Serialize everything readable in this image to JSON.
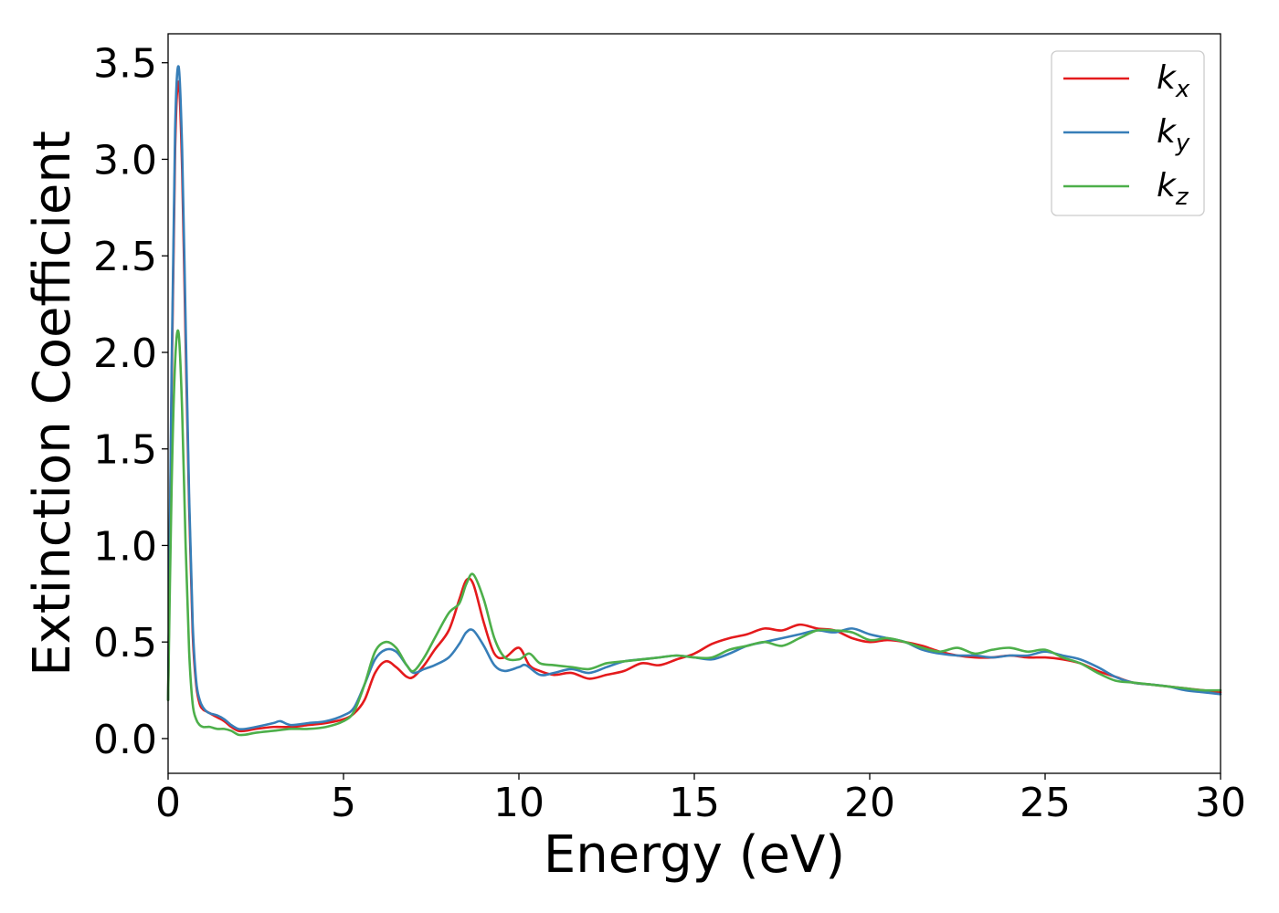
{
  "chart_data": {
    "type": "line",
    "xlabel": "Energy (eV)",
    "ylabel": "Extinction Coefficient",
    "xlim": [
      0,
      30
    ],
    "ylim": [
      -0.18,
      3.65
    ],
    "xticks": [
      0,
      5,
      10,
      15,
      20,
      25,
      30
    ],
    "xtick_labels": [
      "0",
      "5",
      "10",
      "15",
      "20",
      "25",
      "30"
    ],
    "yticks": [
      0.0,
      0.5,
      1.0,
      1.5,
      2.0,
      2.5,
      3.0,
      3.5
    ],
    "ytick_labels": [
      "0.0",
      "0.5",
      "1.0",
      "1.5",
      "2.0",
      "2.5",
      "3.0",
      "3.5"
    ],
    "grid": false,
    "legend_position": "top-right",
    "series": [
      {
        "name": "k",
        "subscript": "x",
        "color": "#e41a1c",
        "x": [
          0,
          0.1,
          0.2,
          0.3,
          0.4,
          0.5,
          0.6,
          0.7,
          0.8,
          0.9,
          1.0,
          1.1,
          1.2,
          1.4,
          1.6,
          1.8,
          2.0,
          2.2,
          2.5,
          3.0,
          3.5,
          4.0,
          4.5,
          5.0,
          5.3,
          5.6,
          5.9,
          6.2,
          6.5,
          6.8,
          7.0,
          7.3,
          7.6,
          8.0,
          8.3,
          8.5,
          8.7,
          9.0,
          9.3,
          9.6,
          10.0,
          10.3,
          10.6,
          11.0,
          11.5,
          12.0,
          12.5,
          13.0,
          13.5,
          14.0,
          14.5,
          15.0,
          15.5,
          16.0,
          16.5,
          17.0,
          17.5,
          18.0,
          18.5,
          19.0,
          19.5,
          20.0,
          20.5,
          21.0,
          21.5,
          22.0,
          22.5,
          23.0,
          23.5,
          24.0,
          24.5,
          25.0,
          25.5,
          26.0,
          26.5,
          27.0,
          27.5,
          28.0,
          28.5,
          29.0,
          29.5,
          30.0
        ],
        "y": [
          0.2,
          1.8,
          3.05,
          3.4,
          2.95,
          2.05,
          1.2,
          0.55,
          0.28,
          0.18,
          0.15,
          0.14,
          0.13,
          0.11,
          0.09,
          0.06,
          0.04,
          0.04,
          0.05,
          0.06,
          0.06,
          0.07,
          0.08,
          0.1,
          0.13,
          0.2,
          0.34,
          0.4,
          0.37,
          0.32,
          0.32,
          0.38,
          0.46,
          0.56,
          0.72,
          0.82,
          0.8,
          0.6,
          0.44,
          0.42,
          0.47,
          0.38,
          0.35,
          0.33,
          0.34,
          0.31,
          0.33,
          0.35,
          0.39,
          0.38,
          0.41,
          0.44,
          0.49,
          0.52,
          0.54,
          0.57,
          0.56,
          0.59,
          0.57,
          0.56,
          0.52,
          0.5,
          0.51,
          0.5,
          0.48,
          0.45,
          0.43,
          0.42,
          0.42,
          0.43,
          0.42,
          0.42,
          0.41,
          0.39,
          0.35,
          0.32,
          0.29,
          0.28,
          0.27,
          0.26,
          0.25,
          0.24
        ]
      },
      {
        "name": "k",
        "subscript": "y",
        "color": "#377eb8",
        "x": [
          0,
          0.1,
          0.2,
          0.3,
          0.4,
          0.5,
          0.6,
          0.7,
          0.8,
          0.9,
          1.0,
          1.1,
          1.2,
          1.4,
          1.6,
          1.8,
          2.0,
          2.2,
          2.5,
          3.0,
          3.2,
          3.5,
          4.0,
          4.5,
          5.0,
          5.3,
          5.6,
          5.9,
          6.2,
          6.5,
          6.8,
          7.0,
          7.3,
          7.6,
          8.0,
          8.3,
          8.5,
          8.7,
          9.0,
          9.3,
          9.6,
          10.0,
          10.2,
          10.6,
          11.0,
          11.5,
          12.0,
          12.5,
          13.0,
          13.5,
          14.0,
          14.5,
          15.0,
          15.5,
          16.0,
          16.5,
          17.0,
          17.5,
          18.0,
          18.5,
          19.0,
          19.5,
          20.0,
          20.5,
          21.0,
          21.5,
          22.0,
          22.5,
          23.0,
          23.5,
          24.0,
          24.5,
          25.0,
          25.5,
          26.0,
          26.5,
          27.0,
          27.5,
          28.0,
          28.5,
          29.0,
          29.5,
          30.0
        ],
        "y": [
          0.2,
          1.9,
          3.15,
          3.48,
          3.05,
          2.15,
          1.25,
          0.6,
          0.3,
          0.2,
          0.16,
          0.14,
          0.13,
          0.12,
          0.1,
          0.07,
          0.05,
          0.05,
          0.06,
          0.08,
          0.09,
          0.07,
          0.08,
          0.09,
          0.12,
          0.16,
          0.28,
          0.41,
          0.46,
          0.45,
          0.38,
          0.34,
          0.36,
          0.38,
          0.42,
          0.49,
          0.55,
          0.56,
          0.48,
          0.38,
          0.35,
          0.37,
          0.38,
          0.33,
          0.34,
          0.36,
          0.34,
          0.37,
          0.4,
          0.41,
          0.42,
          0.43,
          0.42,
          0.41,
          0.44,
          0.48,
          0.5,
          0.52,
          0.54,
          0.56,
          0.55,
          0.57,
          0.54,
          0.52,
          0.5,
          0.46,
          0.44,
          0.43,
          0.43,
          0.42,
          0.43,
          0.43,
          0.45,
          0.43,
          0.41,
          0.37,
          0.32,
          0.29,
          0.28,
          0.27,
          0.25,
          0.24,
          0.23
        ]
      },
      {
        "name": "k",
        "subscript": "z",
        "color": "#4daf4a",
        "x": [
          0,
          0.1,
          0.2,
          0.3,
          0.4,
          0.5,
          0.6,
          0.7,
          0.8,
          0.9,
          1.0,
          1.1,
          1.2,
          1.4,
          1.6,
          1.8,
          2.0,
          2.2,
          2.5,
          3.0,
          3.5,
          4.0,
          4.5,
          5.0,
          5.3,
          5.6,
          5.9,
          6.2,
          6.5,
          6.8,
          7.0,
          7.3,
          7.6,
          8.0,
          8.3,
          8.5,
          8.7,
          9.0,
          9.3,
          9.6,
          10.0,
          10.3,
          10.6,
          11.0,
          11.5,
          12.0,
          12.5,
          13.0,
          13.5,
          14.0,
          14.5,
          15.0,
          15.5,
          16.0,
          16.5,
          17.0,
          17.5,
          18.0,
          18.5,
          19.0,
          19.5,
          20.0,
          20.5,
          21.0,
          21.5,
          22.0,
          22.5,
          23.0,
          23.5,
          24.0,
          24.5,
          25.0,
          25.5,
          26.0,
          26.5,
          27.0,
          27.5,
          28.0,
          28.5,
          29.0,
          29.5,
          30.0
        ],
        "y": [
          0.2,
          1.3,
          1.95,
          2.1,
          1.7,
          1.0,
          0.45,
          0.18,
          0.1,
          0.07,
          0.06,
          0.06,
          0.06,
          0.05,
          0.05,
          0.04,
          0.02,
          0.02,
          0.03,
          0.04,
          0.05,
          0.05,
          0.06,
          0.09,
          0.14,
          0.28,
          0.45,
          0.5,
          0.47,
          0.38,
          0.35,
          0.42,
          0.52,
          0.65,
          0.7,
          0.8,
          0.85,
          0.72,
          0.52,
          0.42,
          0.41,
          0.44,
          0.39,
          0.38,
          0.37,
          0.36,
          0.39,
          0.4,
          0.41,
          0.42,
          0.43,
          0.42,
          0.42,
          0.46,
          0.48,
          0.5,
          0.48,
          0.52,
          0.56,
          0.56,
          0.55,
          0.51,
          0.52,
          0.5,
          0.47,
          0.45,
          0.47,
          0.44,
          0.46,
          0.47,
          0.45,
          0.46,
          0.42,
          0.39,
          0.34,
          0.3,
          0.29,
          0.28,
          0.27,
          0.26,
          0.25,
          0.25
        ]
      }
    ]
  }
}
